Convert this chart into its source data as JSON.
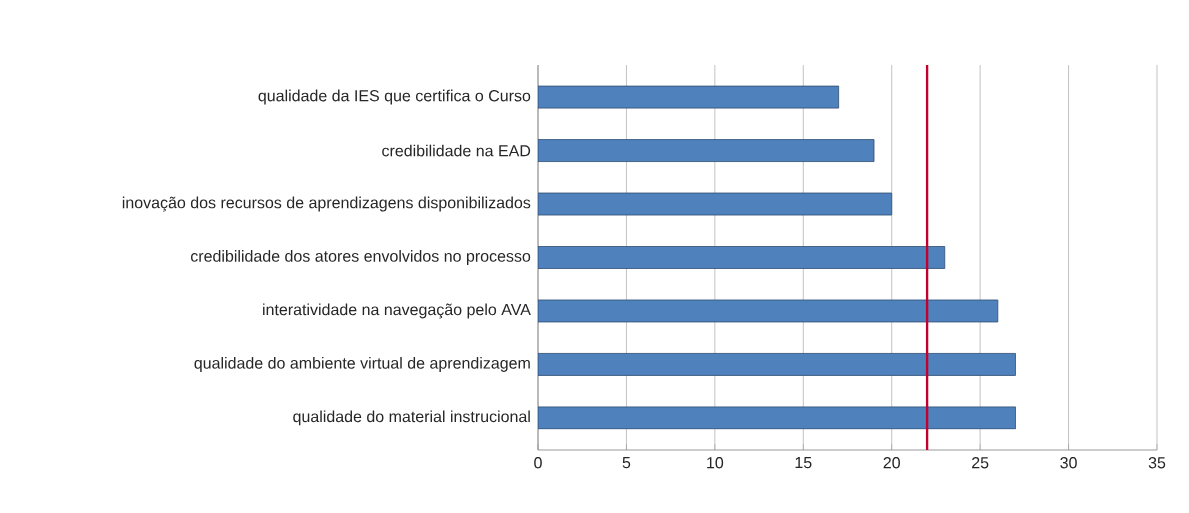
{
  "chart_data": {
    "type": "bar",
    "orientation": "horizontal",
    "categories": [
      "qualidade da IES que certifica o Curso",
      "credibilidade na EAD",
      "inovação dos recursos de aprendizagens disponibilizados",
      "credibilidade dos atores envolvidos no processo",
      "interatividade na navegação pelo AVA",
      "qualidade do ambiente virtual de aprendizagem",
      "qualidade do material instrucional"
    ],
    "values": [
      17,
      19,
      20,
      23,
      26,
      27,
      27
    ],
    "color": "#4f81bd",
    "xlim": [
      0,
      35
    ],
    "xticks": [
      0,
      5,
      10,
      15,
      20,
      25,
      30,
      35
    ],
    "grid": "x",
    "ref_lines": [
      {
        "axis": "x",
        "value": 22,
        "color": "#c0002f"
      }
    ]
  }
}
